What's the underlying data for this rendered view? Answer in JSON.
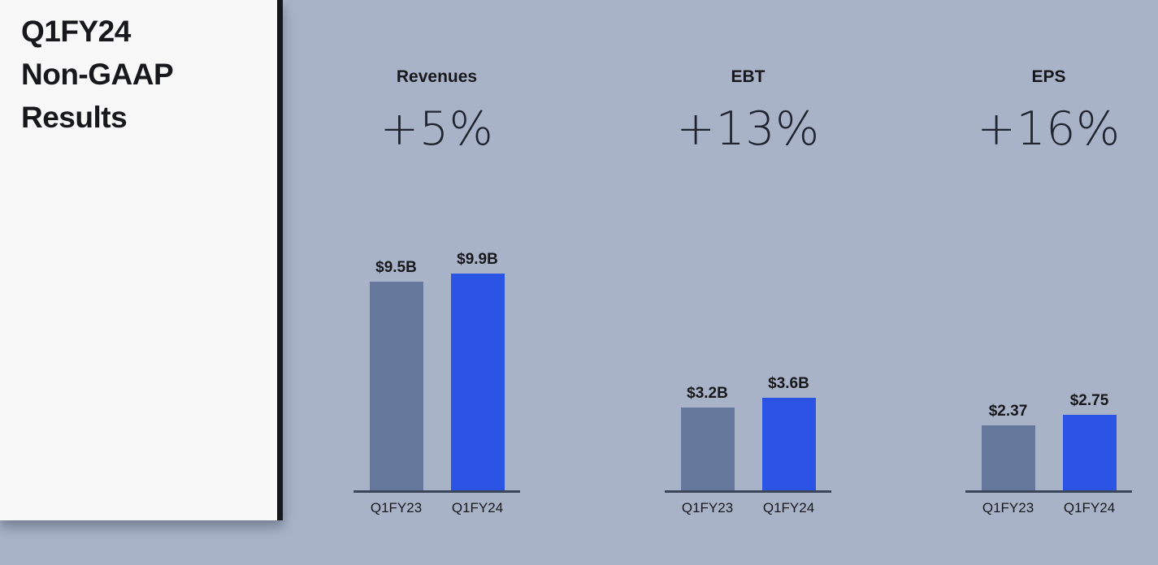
{
  "panel": {
    "title_lines": [
      "Q1FY24",
      "Non-GAAP",
      "Results"
    ]
  },
  "colors": {
    "background": "#a9b3c8",
    "panel": "#f8f8f8",
    "divider": "#16171b",
    "text": "#17181c",
    "baseline": "#3c4659"
  },
  "chart_data": [
    {
      "type": "bar",
      "title": "Revenues",
      "subtitle": "+5%",
      "categories": [
        "Q1FY23",
        "Q1FY24"
      ],
      "values": [
        9.5,
        9.9
      ],
      "value_labels": [
        "$9.5B",
        "$9.9B"
      ],
      "bar_colors": [
        "#66789b",
        "#2b54e4"
      ],
      "ylim": [
        0,
        10
      ],
      "grid": false,
      "legend": false
    },
    {
      "type": "bar",
      "title": "EBT",
      "subtitle": "+13%",
      "categories": [
        "Q1FY23",
        "Q1FY24"
      ],
      "values": [
        3.2,
        3.6
      ],
      "value_labels": [
        "$3.2B",
        "$3.6B"
      ],
      "bar_colors": [
        "#66789b",
        "#2b54e4"
      ],
      "ylim": [
        0,
        8.5
      ],
      "grid": false,
      "legend": false
    },
    {
      "type": "bar",
      "title": "EPS",
      "subtitle": "+16%",
      "categories": [
        "Q1FY23",
        "Q1FY24"
      ],
      "values": [
        2.37,
        2.75
      ],
      "value_labels": [
        "$2.37",
        "$2.75"
      ],
      "bar_colors": [
        "#66789b",
        "#2b54e4"
      ],
      "ylim": [
        0,
        8
      ],
      "grid": false,
      "legend": false
    }
  ]
}
